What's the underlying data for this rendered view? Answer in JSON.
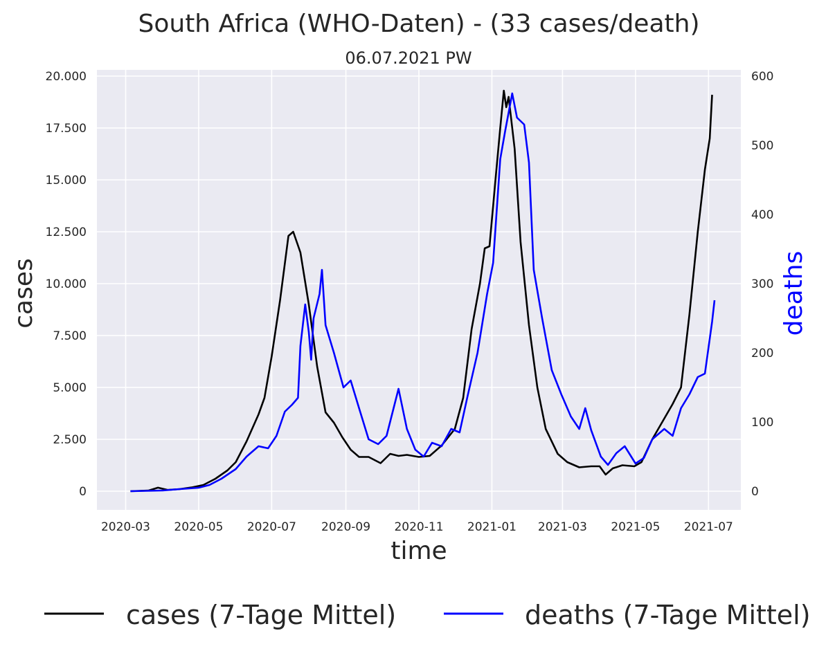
{
  "chart_data": {
    "type": "line",
    "title": "South Africa (WHO-Daten) - (33 cases/death)",
    "subtitle": "06.07.2021 PW",
    "xlabel": "time",
    "ylabel": "cases",
    "ylabel_right": "deaths",
    "x_ticks": [
      "2020-03",
      "2020-05",
      "2020-07",
      "2020-09",
      "2020-11",
      "2021-01",
      "2021-03",
      "2021-05",
      "2021-07"
    ],
    "y_ticks": [
      "0",
      "2.500",
      "5.000",
      "7.500",
      "10.000",
      "12.500",
      "15.000",
      "17.500",
      "20.000"
    ],
    "y_right_ticks": [
      "0",
      "100",
      "200",
      "300",
      "400",
      "500",
      "600"
    ],
    "xlim": [
      "2020-02-06",
      "2021-07-28"
    ],
    "ylim": [
      -900,
      20300
    ],
    "ylim_right": [
      -27,
      609
    ],
    "grid": true,
    "legend_position": "bottom",
    "colors": {
      "cases": "#000000",
      "deaths": "#0000ff",
      "background": "#eaeaf2",
      "grid": "#ffffff"
    },
    "series": [
      {
        "name": "cases (7-Tage Mittel)",
        "axis": "left",
        "points": [
          [
            "2020-03-05",
            0
          ],
          [
            "2020-03-20",
            30
          ],
          [
            "2020-03-28",
            170
          ],
          [
            "2020-04-05",
            60
          ],
          [
            "2020-04-15",
            100
          ],
          [
            "2020-04-25",
            180
          ],
          [
            "2020-05-05",
            300
          ],
          [
            "2020-05-15",
            600
          ],
          [
            "2020-05-25",
            1000
          ],
          [
            "2020-06-01",
            1400
          ],
          [
            "2020-06-10",
            2400
          ],
          [
            "2020-06-20",
            3700
          ],
          [
            "2020-06-25",
            4500
          ],
          [
            "2020-07-01",
            6500
          ],
          [
            "2020-07-08",
            9200
          ],
          [
            "2020-07-15",
            12300
          ],
          [
            "2020-07-19",
            12500
          ],
          [
            "2020-07-22",
            12000
          ],
          [
            "2020-07-25",
            11500
          ],
          [
            "2020-08-01",
            9000
          ],
          [
            "2020-08-08",
            6000
          ],
          [
            "2020-08-15",
            3800
          ],
          [
            "2020-08-22",
            3300
          ],
          [
            "2020-08-29",
            2600
          ],
          [
            "2020-09-05",
            2000
          ],
          [
            "2020-09-12",
            1650
          ],
          [
            "2020-09-20",
            1650
          ],
          [
            "2020-09-30",
            1350
          ],
          [
            "2020-10-08",
            1800
          ],
          [
            "2020-10-15",
            1700
          ],
          [
            "2020-10-22",
            1750
          ],
          [
            "2020-11-01",
            1650
          ],
          [
            "2020-11-10",
            1700
          ],
          [
            "2020-11-20",
            2200
          ],
          [
            "2020-12-01",
            3000
          ],
          [
            "2020-12-08",
            4500
          ],
          [
            "2020-12-15",
            7800
          ],
          [
            "2020-12-22",
            10000
          ],
          [
            "2020-12-26",
            11700
          ],
          [
            "2020-12-30",
            11800
          ],
          [
            "2021-01-04",
            15000
          ],
          [
            "2021-01-08",
            17500
          ],
          [
            "2021-01-11",
            19300
          ],
          [
            "2021-01-13",
            18500
          ],
          [
            "2021-01-15",
            19000
          ],
          [
            "2021-01-20",
            16500
          ],
          [
            "2021-01-25",
            12000
          ],
          [
            "2021-02-01",
            8000
          ],
          [
            "2021-02-08",
            5000
          ],
          [
            "2021-02-15",
            3000
          ],
          [
            "2021-02-25",
            1800
          ],
          [
            "2021-03-05",
            1400
          ],
          [
            "2021-03-15",
            1150
          ],
          [
            "2021-03-25",
            1200
          ],
          [
            "2021-04-01",
            1200
          ],
          [
            "2021-04-06",
            800
          ],
          [
            "2021-04-12",
            1100
          ],
          [
            "2021-04-20",
            1250
          ],
          [
            "2021-04-30",
            1200
          ],
          [
            "2021-05-06",
            1400
          ],
          [
            "2021-05-15",
            2500
          ],
          [
            "2021-05-25",
            3500
          ],
          [
            "2021-06-01",
            4200
          ],
          [
            "2021-06-08",
            5000
          ],
          [
            "2021-06-15",
            8500
          ],
          [
            "2021-06-22",
            12500
          ],
          [
            "2021-06-28",
            15500
          ],
          [
            "2021-07-02",
            17000
          ],
          [
            "2021-07-04",
            19100
          ]
        ]
      },
      {
        "name": "deaths (7-Tage Mittel)",
        "axis": "right",
        "points": [
          [
            "2020-03-05",
            0
          ],
          [
            "2020-04-01",
            1
          ],
          [
            "2020-04-15",
            3
          ],
          [
            "2020-05-01",
            5
          ],
          [
            "2020-05-10",
            9
          ],
          [
            "2020-05-20",
            18
          ],
          [
            "2020-06-01",
            32
          ],
          [
            "2020-06-10",
            50
          ],
          [
            "2020-06-20",
            65
          ],
          [
            "2020-06-28",
            62
          ],
          [
            "2020-07-05",
            80
          ],
          [
            "2020-07-12",
            115
          ],
          [
            "2020-07-18",
            125
          ],
          [
            "2020-07-23",
            135
          ],
          [
            "2020-07-25",
            210
          ],
          [
            "2020-07-29",
            270
          ],
          [
            "2020-08-01",
            230
          ],
          [
            "2020-08-03",
            190
          ],
          [
            "2020-08-05",
            250
          ],
          [
            "2020-08-10",
            285
          ],
          [
            "2020-08-12",
            320
          ],
          [
            "2020-08-15",
            240
          ],
          [
            "2020-08-22",
            200
          ],
          [
            "2020-08-30",
            150
          ],
          [
            "2020-09-05",
            160
          ],
          [
            "2020-09-12",
            120
          ],
          [
            "2020-09-20",
            75
          ],
          [
            "2020-09-28",
            68
          ],
          [
            "2020-10-05",
            80
          ],
          [
            "2020-10-15",
            148
          ],
          [
            "2020-10-22",
            90
          ],
          [
            "2020-10-29",
            60
          ],
          [
            "2020-11-05",
            50
          ],
          [
            "2020-11-12",
            70
          ],
          [
            "2020-11-20",
            65
          ],
          [
            "2020-11-28",
            90
          ],
          [
            "2020-12-05",
            85
          ],
          [
            "2020-12-12",
            140
          ],
          [
            "2020-12-20",
            200
          ],
          [
            "2020-12-28",
            285
          ],
          [
            "2021-01-02",
            330
          ],
          [
            "2021-01-08",
            480
          ],
          [
            "2021-01-12",
            520
          ],
          [
            "2021-01-18",
            575
          ],
          [
            "2021-01-22",
            540
          ],
          [
            "2021-01-28",
            530
          ],
          [
            "2021-02-01",
            475
          ],
          [
            "2021-02-05",
            320
          ],
          [
            "2021-02-12",
            250
          ],
          [
            "2021-02-20",
            175
          ],
          [
            "2021-02-28",
            140
          ],
          [
            "2021-03-08",
            108
          ],
          [
            "2021-03-15",
            90
          ],
          [
            "2021-03-20",
            120
          ],
          [
            "2021-03-25",
            88
          ],
          [
            "2021-04-02",
            50
          ],
          [
            "2021-04-08",
            38
          ],
          [
            "2021-04-15",
            55
          ],
          [
            "2021-04-22",
            65
          ],
          [
            "2021-05-01",
            40
          ],
          [
            "2021-05-08",
            48
          ],
          [
            "2021-05-15",
            75
          ],
          [
            "2021-05-25",
            90
          ],
          [
            "2021-06-01",
            80
          ],
          [
            "2021-06-08",
            120
          ],
          [
            "2021-06-15",
            140
          ],
          [
            "2021-06-22",
            165
          ],
          [
            "2021-06-28",
            170
          ],
          [
            "2021-07-04",
            245
          ],
          [
            "2021-07-06",
            276
          ]
        ]
      }
    ]
  }
}
